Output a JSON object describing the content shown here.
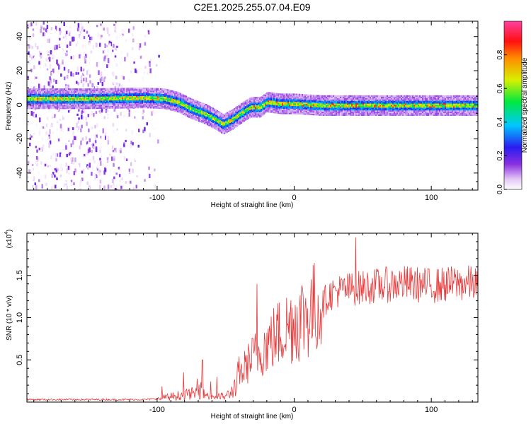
{
  "title": "C2E1.2025.255.07.04.E09",
  "chart_data": [
    {
      "type": "heatmap",
      "xlabel": "Height of straight line (km)",
      "ylabel": "Frequency (Hz)",
      "xlim": [
        -195,
        134
      ],
      "ylim": [
        -50,
        49
      ],
      "x_ticks": [
        -100,
        0,
        100
      ],
      "x_tick_labels": [
        "-100",
        "0",
        "100"
      ],
      "y_ticks": [
        -40,
        -20,
        0,
        20,
        40
      ],
      "y_tick_labels": [
        "-40",
        "-20",
        "0",
        "20",
        "40"
      ],
      "colorbar": {
        "label": "Normalized spectral amplitude",
        "range": [
          0,
          1
        ],
        "ticks": [
          0.0,
          0.2,
          0.4,
          0.6,
          0.8
        ],
        "tick_labels": [
          "0.0",
          "0.2",
          "0.4",
          "0.6",
          "0.8"
        ],
        "colormap": "rainbow (white-purple-blue-cyan-green-yellow-orange-red-pink)"
      },
      "ridge": {
        "description": "Dominant frequency band vs height",
        "x": [
          -195,
          -150,
          -110,
          -95,
          -85,
          -75,
          -65,
          -58,
          -52,
          -45,
          -38,
          -32,
          -25,
          -20,
          -10,
          0,
          20,
          50,
          80,
          110,
          134
        ],
        "y": [
          4,
          4,
          4.5,
          4,
          2,
          -2,
          -5,
          -8,
          -11,
          -8,
          -4,
          -1,
          -1,
          2,
          1,
          1,
          0,
          0,
          0,
          0,
          0
        ]
      },
      "noise_region_x": [
        -195,
        -95
      ]
    },
    {
      "type": "line",
      "series_name": "SNR",
      "color": "#e8393a",
      "xlabel": "Height of straight line (km)",
      "ylabel": "SNR (10 * v/v)",
      "scale_label": "(x10",
      "scale_exponent": "4",
      "xlim": [
        -195,
        134
      ],
      "ylim": [
        0,
        2.0
      ],
      "x_ticks": [
        -100,
        0,
        100
      ],
      "x_tick_labels": [
        "-100",
        "0",
        "100"
      ],
      "y_ticks": [
        0.5,
        1.0,
        1.5
      ],
      "y_tick_labels": [
        "0.5",
        "1.0",
        "1.5"
      ],
      "trend": {
        "x": [
          -195,
          -150,
          -110,
          -100,
          -90,
          -80,
          -70,
          -60,
          -50,
          -45,
          -40,
          -35,
          -30,
          -25,
          -20,
          -10,
          0,
          10,
          20,
          25,
          30,
          40,
          50,
          60,
          80,
          100,
          120,
          134
        ],
        "y": [
          0.02,
          0.02,
          0.02,
          0.03,
          0.06,
          0.08,
          0.1,
          0.06,
          0.06,
          0.12,
          0.3,
          0.45,
          0.55,
          0.62,
          0.7,
          0.85,
          0.98,
          1.08,
          1.18,
          1.3,
          1.35,
          1.38,
          1.4,
          1.42,
          1.45,
          1.42,
          1.45,
          1.45
        ]
      },
      "peaks": [
        {
          "x": -67,
          "y": 0.5
        },
        {
          "x": -27,
          "y": 1.4
        },
        {
          "x": 45,
          "y": 1.95
        }
      ]
    }
  ]
}
